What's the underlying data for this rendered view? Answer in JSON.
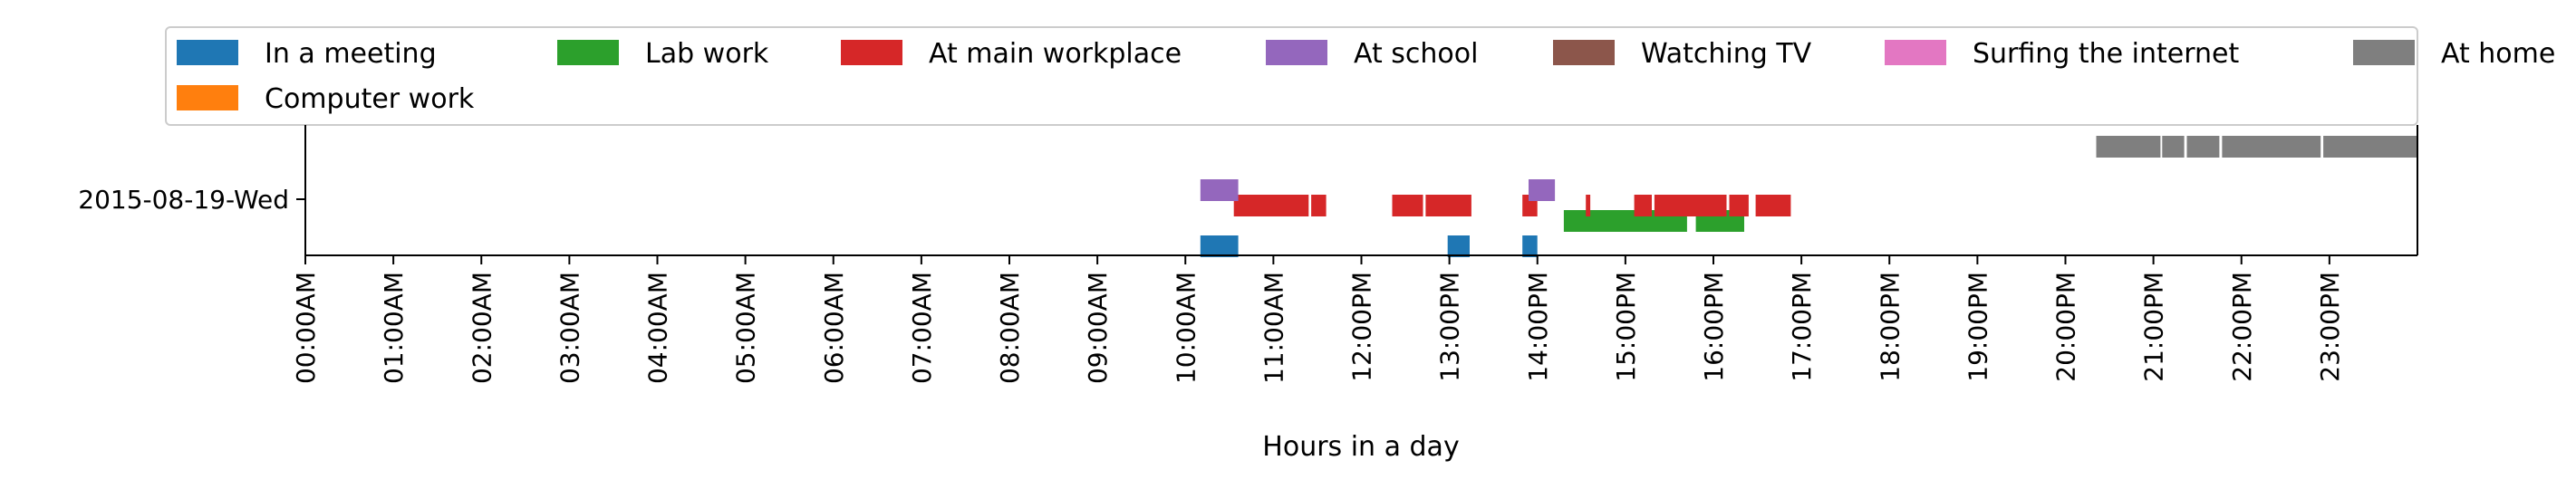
{
  "chart_data": {
    "type": "timeline",
    "xlabel": "Hours in a day",
    "day_label": "2015-08-19-Wed",
    "xlim": [
      0,
      24
    ],
    "x_ticks": [
      "00:00AM",
      "01:00AM",
      "02:00AM",
      "03:00AM",
      "04:00AM",
      "05:00AM",
      "06:00AM",
      "07:00AM",
      "08:00AM",
      "09:00AM",
      "10:00AM",
      "11:00AM",
      "12:00PM",
      "13:00PM",
      "14:00PM",
      "15:00PM",
      "16:00PM",
      "17:00PM",
      "18:00PM",
      "19:00PM",
      "20:00PM",
      "21:00PM",
      "22:00PM",
      "23:00PM"
    ],
    "legend_placement": "top",
    "series": [
      {
        "name": "In a meeting",
        "color": "#1f77b4",
        "intervals": [
          [
            10.17,
            10.6
          ],
          [
            12.98,
            13.23
          ],
          [
            13.83,
            14.0
          ]
        ]
      },
      {
        "name": "Computer work",
        "color": "#ff7f0e",
        "intervals": []
      },
      {
        "name": "Lab work",
        "color": "#2ca02c",
        "intervals": [
          [
            14.3,
            15.7
          ],
          [
            15.8,
            16.35
          ]
        ]
      },
      {
        "name": "At main workplace",
        "color": "#d62728",
        "intervals": [
          [
            10.55,
            11.4
          ],
          [
            11.43,
            11.6
          ],
          [
            12.35,
            12.7
          ],
          [
            12.73,
            13.25
          ],
          [
            13.83,
            14.0
          ],
          [
            14.55,
            14.6
          ],
          [
            15.1,
            15.3
          ],
          [
            15.33,
            16.15
          ],
          [
            16.18,
            16.4
          ],
          [
            16.48,
            16.88
          ]
        ]
      },
      {
        "name": "At school",
        "color": "#9467bd",
        "intervals": [
          [
            10.17,
            10.6
          ],
          [
            13.9,
            14.2
          ]
        ]
      },
      {
        "name": "Watching TV",
        "color": "#8c564b",
        "intervals": []
      },
      {
        "name": "Surfing the internet",
        "color": "#e377c2",
        "intervals": []
      },
      {
        "name": "At home",
        "color": "#7f7f7f",
        "intervals": [
          [
            20.35,
            21.08
          ],
          [
            21.1,
            21.35
          ],
          [
            21.38,
            21.75
          ],
          [
            21.78,
            22.9
          ],
          [
            22.93,
            24.0
          ]
        ]
      }
    ]
  }
}
